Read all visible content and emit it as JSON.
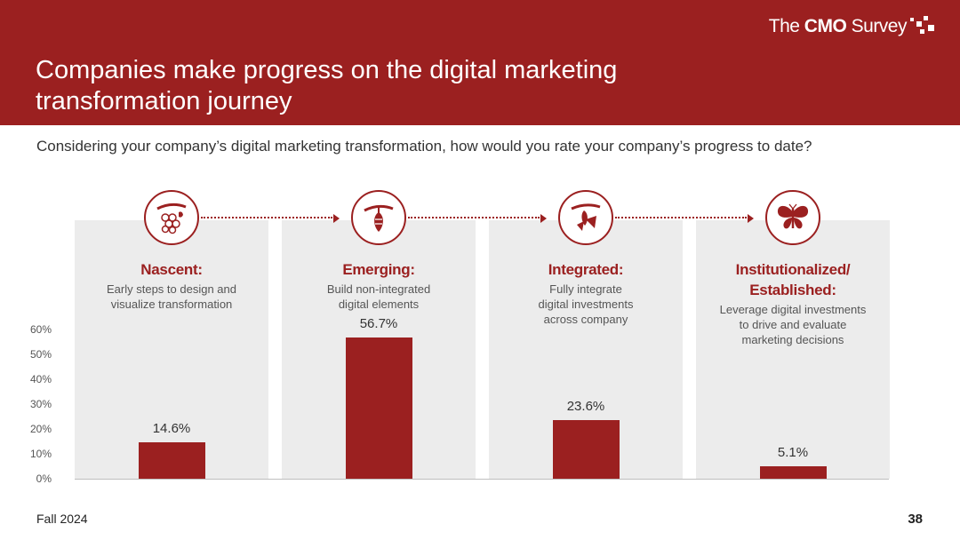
{
  "header": {
    "title": "Companies make progress on the digital marketing transformation journey",
    "logo": {
      "prefix": "The ",
      "brand": "CMO",
      "suffix": " Survey"
    }
  },
  "question": "Considering your company’s digital marketing transformation, how would you rate your company’s progress to date?",
  "stages": [
    {
      "title": "Nascent:",
      "description": "Early steps to design and visualize transformation",
      "icon": "cocoon-egg-icon"
    },
    {
      "title": "Emerging:",
      "description": "Build non-integrated digital elements",
      "icon": "chrysalis-icon"
    },
    {
      "title": "Integrated:",
      "description": "Fully integrate digital investments across company",
      "icon": "emerging-butterfly-icon"
    },
    {
      "title": "Institutionalized/ Established:",
      "description": "Leverage digital investments to drive and evaluate marketing decisions",
      "icon": "butterfly-icon"
    }
  ],
  "colors": {
    "brand": "#9b2020",
    "panel": "#ececec"
  },
  "chart_data": {
    "type": "bar",
    "categories": [
      "Nascent:",
      "Emerging:",
      "Integrated:",
      "Institutionalized/ Established:"
    ],
    "values": [
      14.6,
      56.7,
      23.6,
      5.1
    ],
    "value_labels": [
      "14.6%",
      "56.7%",
      "23.6%",
      "5.1%"
    ],
    "ylim": [
      0,
      60
    ],
    "yticks": [
      "0%",
      "10%",
      "20%",
      "30%",
      "40%",
      "50%",
      "60%"
    ],
    "grid": false
  },
  "footer": {
    "left": "Fall 2024",
    "page": "38"
  }
}
